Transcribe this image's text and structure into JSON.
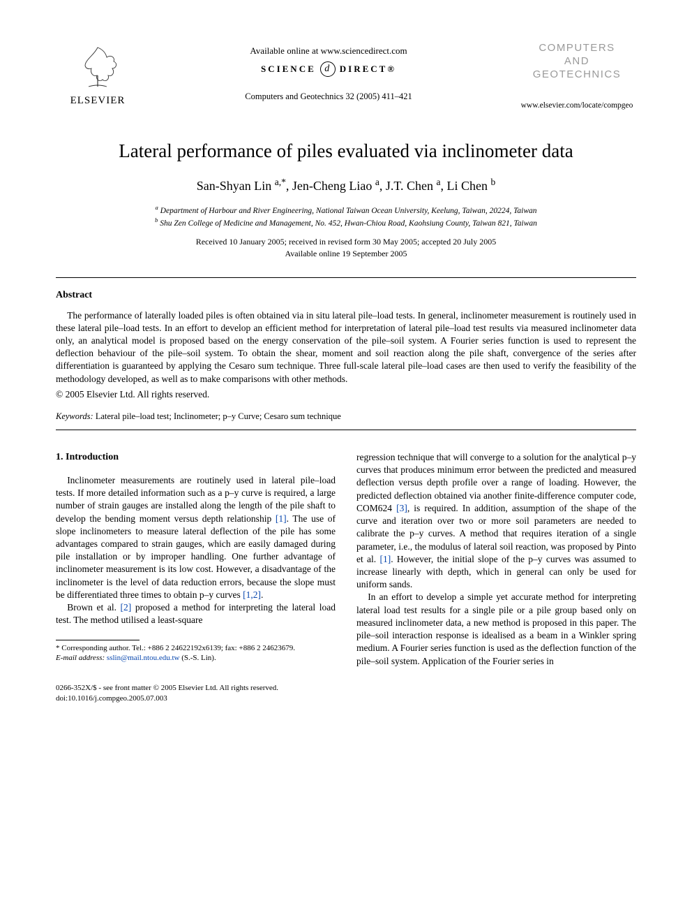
{
  "header": {
    "elsevier_label": "ELSEVIER",
    "available_online": "Available online at www.sciencedirect.com",
    "sd_left": "SCIENCE",
    "sd_glyph": "d",
    "sd_right": "DIRECT®",
    "citation": "Computers and Geotechnics 32 (2005) 411–421",
    "journal_box_l1": "COMPUTERS",
    "journal_box_l2": "AND",
    "journal_box_l3": "GEOTECHNICS",
    "journal_url": "www.elsevier.com/locate/compgeo"
  },
  "article": {
    "title": "Lateral performance of piles evaluated via inclinometer data",
    "authors_html": "San-Shyan Lin <sup>a,*</sup>, Jen-Cheng Liao <sup>a</sup>, J.T. Chen <sup>a</sup>, Li Chen <sup>b</sup>",
    "affil_a": "a Department of Harbour and River Engineering, National Taiwan Ocean University, Keelung, Taiwan, 20224, Taiwan",
    "affil_b": "b Shu Zen College of Medicine and Management, No. 452, Hwan-Chiou Road, Kaohsiung County, Taiwan 821, Taiwan",
    "dates_l1": "Received 10 January 2005; received in revised form 30 May 2005; accepted 20 July 2005",
    "dates_l2": "Available online 19 September 2005"
  },
  "abstract": {
    "label": "Abstract",
    "body": "The performance of laterally loaded piles is often obtained via in situ lateral pile–load tests. In general, inclinometer measurement is routinely used in these lateral pile–load tests. In an effort to develop an efficient method for interpretation of lateral pile–load test results via measured inclinometer data only, an analytical model is proposed based on the energy conservation of the pile–soil system. A Fourier series function is used to represent the deflection behaviour of the pile–soil system. To obtain the shear, moment and soil reaction along the pile shaft, convergence of the series after differentiation is guaranteed by applying the Cesaro sum technique. Three full-scale lateral pile–load cases are then used to verify the feasibility of the methodology developed, as well as to make comparisons with other methods.",
    "copyright": "© 2005 Elsevier Ltd. All rights reserved."
  },
  "keywords": {
    "label": "Keywords:",
    "text": " Lateral pile–load test; Inclinometer; p–y Curve; Cesaro sum technique"
  },
  "section1": {
    "heading": "1. Introduction",
    "p1_a": "Inclinometer measurements are routinely used in lateral pile–load tests. If more detailed information such as a p–y curve is required, a large number of strain gauges are installed along the length of the pile shaft to develop the bending moment versus depth relationship ",
    "ref1": "[1]",
    "p1_b": ". The use of slope inclinometers to measure lateral deflection of the pile has some advantages compared to strain gauges, which are easily damaged during pile installation or by improper handling. One further advantage of inclinometer measurement is its low cost. However, a disadvantage of the inclinometer is the level of data reduction errors, because the slope must be differentiated three times to obtain p–y curves ",
    "ref12": "[1,2]",
    "p1_c": ".",
    "p2_a": "Brown et al. ",
    "ref2": "[2]",
    "p2_b": " proposed a method for interpreting the lateral load test. The method utilised a least-square",
    "p3_a": "regression technique that will converge to a solution for the analytical p–y curves that produces minimum error between the predicted and measured deflection versus depth profile over a range of loading. However, the predicted deflection obtained via another finite-difference computer code, COM624 ",
    "ref3": "[3]",
    "p3_b": ", is required. In addition, assumption of the shape of the curve and iteration over two or more soil parameters are needed to calibrate the p–y curves. A method that requires iteration of a single parameter, i.e., the modulus of lateral soil reaction, was proposed by Pinto et al. ",
    "ref1b": "[1]",
    "p3_c": ". However, the initial slope of the p–y curves was assumed to increase linearly with depth, which in general can only be used for uniform sands.",
    "p4": "In an effort to develop a simple yet accurate method for interpreting lateral load test results for a single pile or a pile group based only on measured inclinometer data, a new method is proposed in this paper. The pile–soil interaction response is idealised as a beam in a Winkler spring medium. A Fourier series function is used as the deflection function of the pile–soil system. Application of the Fourier series in"
  },
  "footnotes": {
    "corr": "* Corresponding author. Tel.: +886 2 24622192x6139; fax: +886 2 24623679.",
    "email_label": "E-mail address:",
    "email": "sslin@mail.ntou.edu.tw",
    "email_tail": " (S.-S. Lin)."
  },
  "bottom": {
    "line1": "0266-352X/$ - see front matter © 2005 Elsevier Ltd. All rights reserved.",
    "line2": "doi:10.1016/j.compgeo.2005.07.003"
  },
  "colors": {
    "link": "#0645ad",
    "grey_logo": "#9a9a9a"
  }
}
